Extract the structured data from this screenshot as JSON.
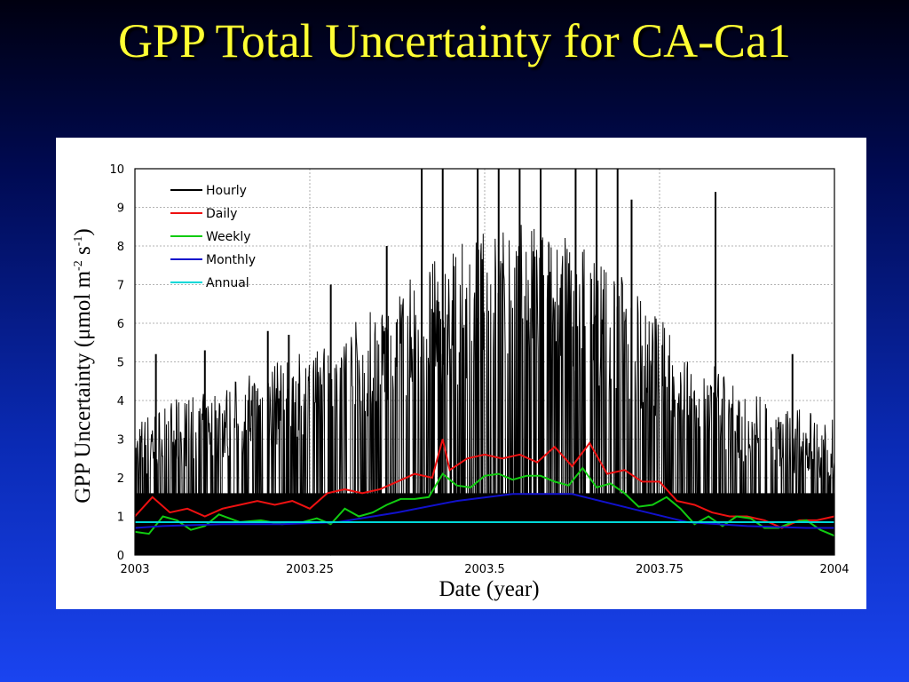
{
  "slide": {
    "title": "GPP Total Uncertainty for CA-Ca1"
  },
  "chart_data": {
    "type": "line",
    "title": "GPP Total Uncertainty for CA-Ca1",
    "xlabel": "Date (year)",
    "ylabel_parts": [
      "GPP Uncertainty (μmol m",
      "-2",
      " s",
      "-1",
      ")"
    ],
    "xlim": [
      2003,
      2004
    ],
    "ylim": [
      0,
      10
    ],
    "x_ticks": [
      2003,
      2003.25,
      2003.5,
      2003.75,
      2004
    ],
    "x_tick_labels": [
      "2003",
      "2003.25",
      "2003.5",
      "2003.75",
      "2004"
    ],
    "y_ticks": [
      0,
      1,
      2,
      3,
      4,
      5,
      6,
      7,
      8,
      9,
      10
    ],
    "y_tick_labels": [
      "0",
      "1",
      "2",
      "3",
      "4",
      "5",
      "6",
      "7",
      "8",
      "9",
      "10"
    ],
    "grid": true,
    "legend_position": "top-left",
    "series": [
      {
        "name": "Hourly",
        "color": "#000000",
        "style": "dense-spikes",
        "envelope_x": [
          2003.0,
          2003.05,
          2003.1,
          2003.15,
          2003.2,
          2003.25,
          2003.3,
          2003.35,
          2003.4,
          2003.45,
          2003.5,
          2003.55,
          2003.6,
          2003.65,
          2003.7,
          2003.75,
          2003.8,
          2003.85,
          2003.9,
          2003.95,
          2004.0
        ],
        "envelope_y": [
          3.5,
          4.0,
          4.2,
          4.6,
          5.0,
          5.3,
          5.9,
          6.6,
          7.3,
          7.9,
          8.4,
          8.6,
          8.4,
          8.0,
          7.2,
          6.2,
          5.3,
          4.6,
          4.1,
          3.8,
          3.5
        ],
        "peak_x": [
          2003.03,
          2003.1,
          2003.19,
          2003.22,
          2003.28,
          2003.36,
          2003.41,
          2003.44,
          2003.49,
          2003.52,
          2003.55,
          2003.58,
          2003.63,
          2003.66,
          2003.69,
          2003.71,
          2003.83,
          2003.94
        ],
        "peak_y": [
          5.2,
          5.3,
          5.8,
          5.7,
          7.0,
          8.0,
          10.0,
          10.0,
          10.0,
          10.0,
          10.0,
          10.0,
          10.0,
          10.0,
          10.0,
          9.2,
          9.4,
          5.2
        ]
      },
      {
        "name": "Daily",
        "color": "#ee1111",
        "x": [
          2003.0,
          2003.025,
          2003.05,
          2003.075,
          2003.1,
          2003.125,
          2003.15,
          2003.175,
          2003.2,
          2003.225,
          2003.25,
          2003.275,
          2003.3,
          2003.325,
          2003.35,
          2003.375,
          2003.4,
          2003.425,
          2003.44,
          2003.45,
          2003.475,
          2003.5,
          2003.525,
          2003.55,
          2003.575,
          2003.6,
          2003.625,
          2003.65,
          2003.675,
          2003.7,
          2003.725,
          2003.75,
          2003.775,
          2003.8,
          2003.825,
          2003.85,
          2003.875,
          2003.9,
          2003.925,
          2003.95,
          2003.975,
          2004.0
        ],
        "values": [
          1.0,
          1.5,
          1.1,
          1.2,
          1.0,
          1.2,
          1.3,
          1.4,
          1.3,
          1.4,
          1.2,
          1.6,
          1.7,
          1.6,
          1.7,
          1.9,
          2.1,
          2.0,
          3.0,
          2.2,
          2.5,
          2.6,
          2.5,
          2.6,
          2.4,
          2.8,
          2.3,
          2.9,
          2.1,
          2.2,
          1.9,
          1.9,
          1.4,
          1.3,
          1.1,
          1.0,
          1.0,
          0.9,
          0.7,
          0.9,
          0.9,
          1.0
        ]
      },
      {
        "name": "Weekly",
        "color": "#11cc11",
        "x": [
          2003.0,
          2003.02,
          2003.04,
          2003.06,
          2003.08,
          2003.1,
          2003.12,
          2003.15,
          2003.18,
          2003.21,
          2003.24,
          2003.26,
          2003.28,
          2003.3,
          2003.32,
          2003.34,
          2003.36,
          2003.38,
          2003.4,
          2003.42,
          2003.44,
          2003.46,
          2003.48,
          2003.5,
          2003.52,
          2003.54,
          2003.56,
          2003.58,
          2003.6,
          2003.62,
          2003.64,
          2003.66,
          2003.68,
          2003.7,
          2003.72,
          2003.74,
          2003.76,
          2003.78,
          2003.8,
          2003.82,
          2003.84,
          2003.86,
          2003.88,
          2003.9,
          2003.92,
          2003.94,
          2003.96,
          2003.98,
          2004.0
        ],
        "values": [
          0.6,
          0.55,
          1.0,
          0.9,
          0.65,
          0.75,
          1.05,
          0.85,
          0.9,
          0.8,
          0.85,
          0.95,
          0.8,
          1.2,
          1.0,
          1.1,
          1.3,
          1.45,
          1.45,
          1.5,
          2.1,
          1.8,
          1.75,
          2.05,
          2.1,
          1.95,
          2.05,
          2.05,
          1.9,
          1.8,
          2.25,
          1.75,
          1.85,
          1.6,
          1.25,
          1.3,
          1.5,
          1.2,
          0.8,
          1.0,
          0.75,
          1.0,
          0.95,
          0.7,
          0.7,
          0.85,
          0.9,
          0.65,
          0.5
        ]
      },
      {
        "name": "Monthly",
        "color": "#1111cc",
        "x": [
          2003.0,
          2003.04,
          2003.125,
          2003.21,
          2003.29,
          2003.375,
          2003.46,
          2003.54,
          2003.625,
          2003.71,
          2003.79,
          2003.875,
          2003.96,
          2004.0
        ],
        "values": [
          0.7,
          0.75,
          0.8,
          0.8,
          0.85,
          1.1,
          1.4,
          1.58,
          1.58,
          1.2,
          0.85,
          0.75,
          0.7,
          0.7
        ]
      },
      {
        "name": "Annual",
        "color": "#00d8d8",
        "x": [
          2003.0,
          2004.0
        ],
        "values": [
          0.85,
          0.85
        ]
      }
    ]
  }
}
